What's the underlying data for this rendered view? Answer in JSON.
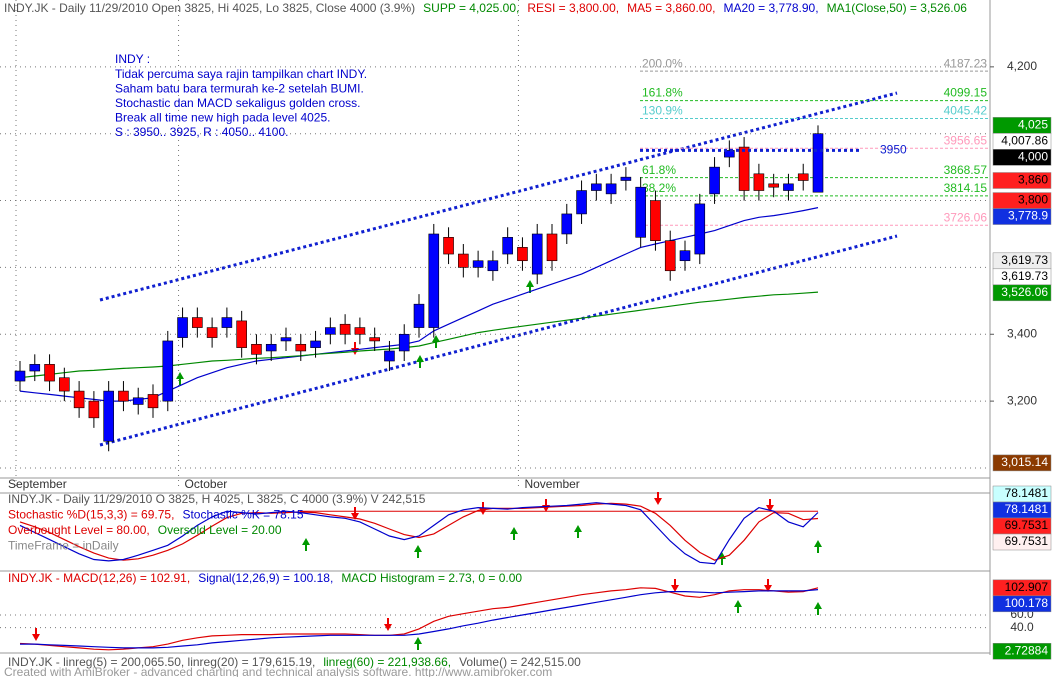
{
  "chart_data": [
    {
      "type": "candlestick",
      "header": [
        {
          "text": "INDY.JK - Daily 11/29/2010 Open 3825, Hi 4025, Lo 3825, Close 4000 (3.9%)",
          "color": "#555555"
        },
        {
          "text": "SUPP = 4,025.00,",
          "color": "#008800"
        },
        {
          "text": "RESI = 3,800.00,",
          "color": "#dd0000"
        },
        {
          "text": "MA5 = 3,860.00,",
          "color": "#dd0000"
        },
        {
          "text": "MA20 = 3,778.90,",
          "color": "#0000cc"
        },
        {
          "text": "MA1(Close,50) = 3,526.06",
          "color": "#008800"
        }
      ],
      "annotation": {
        "color": "#0000cc",
        "lines": [
          "INDY :",
          "Tidak percuma saya rajin tampilkan chart INDY.",
          "Saham batu bara termurah ke-2 setelah BUMI.",
          "Stochastic dan MACD sekaligus golden cross.",
          "Break all time new high pada level 4025.",
          "S : 3950.. 3925, R : 4050.. 4100."
        ]
      },
      "categories": [
        "September",
        null,
        null,
        null,
        null,
        null,
        null,
        null,
        null,
        null,
        null,
        "October",
        null,
        null,
        null,
        null,
        null,
        null,
        null,
        null,
        null,
        null,
        null,
        null,
        null,
        null,
        null,
        null,
        null,
        null,
        null,
        null,
        null,
        null,
        "November",
        null,
        null,
        null,
        null,
        null,
        null,
        null,
        null,
        null,
        null,
        null,
        null,
        null,
        null,
        null,
        null,
        null,
        null,
        null,
        null
      ],
      "open": [
        3260,
        3290,
        3310,
        3270,
        3230,
        3200,
        3080,
        3230,
        3190,
        3220,
        3200,
        3390,
        3450,
        3420,
        3420,
        3440,
        3370,
        3350,
        3380,
        3370,
        3360,
        3400,
        3430,
        3420,
        3390,
        3320,
        3350,
        3420,
        3420,
        3690,
        3640,
        3600,
        3590,
        3640,
        3660,
        3580,
        3700,
        3700,
        3760,
        3830,
        3820,
        3860,
        3690,
        3800,
        3680,
        3620,
        3640,
        3820,
        3930,
        3960,
        3880,
        3850,
        3830,
        3880,
        3825
      ],
      "high": [
        3320,
        3340,
        3340,
        3300,
        3260,
        3230,
        3260,
        3260,
        3240,
        3250,
        3410,
        3480,
        3480,
        3450,
        3480,
        3470,
        3400,
        3400,
        3420,
        3400,
        3410,
        3450,
        3460,
        3450,
        3420,
        3380,
        3430,
        3520,
        3730,
        3720,
        3670,
        3650,
        3650,
        3720,
        3690,
        3730,
        3730,
        3790,
        3860,
        3880,
        3880,
        3900,
        3870,
        3830,
        3710,
        3680,
        3820,
        3930,
        3980,
        3990,
        3910,
        3880,
        3880,
        3910,
        4025
      ],
      "low": [
        3230,
        3260,
        3230,
        3200,
        3150,
        3120,
        3050,
        3170,
        3160,
        3150,
        3170,
        3360,
        3390,
        3360,
        3390,
        3330,
        3310,
        3320,
        3350,
        3320,
        3330,
        3370,
        3370,
        3370,
        3350,
        3290,
        3320,
        3390,
        3390,
        3610,
        3570,
        3570,
        3560,
        3610,
        3590,
        3550,
        3590,
        3670,
        3730,
        3800,
        3790,
        3830,
        3660,
        3650,
        3560,
        3590,
        3610,
        3790,
        3900,
        3800,
        3800,
        3810,
        3800,
        3830,
        3825
      ],
      "close": [
        3290,
        3310,
        3260,
        3230,
        3180,
        3150,
        3230,
        3200,
        3210,
        3180,
        3380,
        3450,
        3420,
        3390,
        3450,
        3360,
        3340,
        3370,
        3390,
        3350,
        3380,
        3420,
        3400,
        3400,
        3380,
        3350,
        3400,
        3490,
        3700,
        3640,
        3600,
        3620,
        3620,
        3690,
        3620,
        3700,
        3620,
        3760,
        3830,
        3850,
        3850,
        3870,
        3840,
        3680,
        3590,
        3650,
        3790,
        3900,
        3950,
        3830,
        3830,
        3840,
        3850,
        3860,
        4000
      ],
      "up_color": "#0000ff",
      "down_color": "#ff0000",
      "series": [
        {
          "color": "#0000cc",
          "values": [
            3230,
            3225,
            3220,
            3215,
            3210,
            3205,
            3200,
            3200,
            3205,
            3210,
            3230,
            3250,
            3270,
            3285,
            3300,
            3310,
            3320,
            3325,
            3330,
            3335,
            3340,
            3345,
            3350,
            3355,
            3360,
            3365,
            3370,
            3380,
            3410,
            3430,
            3450,
            3470,
            3490,
            3505,
            3520,
            3535,
            3550,
            3565,
            3580,
            3600,
            3620,
            3640,
            3660,
            3670,
            3680,
            3690,
            3700,
            3710,
            3725,
            3740,
            3750,
            3755,
            3762,
            3770,
            3778.9
          ]
        },
        {
          "color": "#008800",
          "values": [
            3270,
            3275,
            3280,
            3285,
            3290,
            3292,
            3295,
            3298,
            3300,
            3302,
            3305,
            3310,
            3315,
            3320,
            3322,
            3325,
            3328,
            3330,
            3333,
            3336,
            3340,
            3343,
            3346,
            3350,
            3353,
            3356,
            3360,
            3365,
            3375,
            3385,
            3395,
            3405,
            3412,
            3418,
            3424,
            3430,
            3436,
            3442,
            3448,
            3454,
            3460,
            3466,
            3472,
            3478,
            3484,
            3490,
            3496,
            3500,
            3505,
            3510,
            3514,
            3518,
            3520,
            3523,
            3526.06
          ]
        }
      ],
      "ylim": [
        2970,
        4400
      ],
      "yticks": [
        {
          "value": 3200,
          "label": "3,200"
        },
        {
          "value": 3400,
          "label": "3,400"
        },
        {
          "value": 4200,
          "label": "4,200"
        }
      ],
      "ygrid": [
        3000,
        3200,
        3400,
        3600,
        3800,
        4000,
        4200
      ],
      "fib": [
        {
          "label": "200.0%",
          "price": "4187.23",
          "value": 4187.23,
          "color": "#999999"
        },
        {
          "label": "161.8%",
          "price": "4099.15",
          "value": 4099.15,
          "color": "#22bb22"
        },
        {
          "label": "130.9%",
          "price": "4045.42",
          "value": 4045.42,
          "color": "#55cccc"
        },
        {
          "price": "3956.65",
          "value": 3956.65,
          "color": "#ff99bb"
        },
        {
          "label": "61.8%",
          "price": "3868.57",
          "value": 3868.57,
          "color": "#22bb22"
        },
        {
          "label": "38.2%",
          "price": "3814.15",
          "value": 3814.15,
          "color": "#22bb22"
        },
        {
          "price": "3726.06",
          "value": 3726.06,
          "color": "#ff99bb"
        }
      ],
      "level_note": {
        "label": "3950",
        "value": 3950
      },
      "price_tags": [
        {
          "label": "4,025",
          "value": 4025,
          "bg": "#009900",
          "fg": "#ffffff"
        },
        {
          "label": "4,007.86",
          "value": 4007.86,
          "bg": "#ffffff",
          "fg": "#000000"
        },
        {
          "label": "4,000",
          "value": 4000,
          "bg": "#000000",
          "fg": "#ffffff"
        },
        {
          "label": "3,860",
          "value": 3860,
          "bg": "#ff2020",
          "fg": "#000000"
        },
        {
          "label": "3,800",
          "value": 3800,
          "bg": "#ff2020",
          "fg": "#000000"
        },
        {
          "label": "3,778.9",
          "value": 3778.9,
          "bg": "#1030e0",
          "fg": "#ffffff"
        },
        {
          "label": "3,619.73",
          "value": 3619.73,
          "bg": "#eeeeee",
          "fg": "#000000"
        },
        {
          "label": "3,619.73",
          "value": 3619.73,
          "bg": "#ffffff",
          "fg": "#000000"
        },
        {
          "label": "3,526.06",
          "value": 3526.06,
          "bg": "#009900",
          "fg": "#ffffff"
        },
        {
          "label": "3,015.14",
          "value": 3015.14,
          "bg": "#8b3a00",
          "fg": "#ffffff"
        }
      ]
    },
    {
      "type": "line",
      "header": [
        [
          {
            "text": "INDY.JK - Daily 11/29/2010 O 3825, H 4025, L 3825, C 4000 (3.9%) V 242,515",
            "color": "#555555"
          }
        ],
        [
          {
            "text": "Stochastic %D(15,3,3) = 69.75,",
            "color": "#dd0000"
          },
          {
            "text": "Stochastic %K = 78.15",
            "color": "#0000cc"
          }
        ],
        [
          {
            "text": "Overbought Level = 80.00,",
            "color": "#dd0000"
          },
          {
            "text": "Oversold Level = 20.00",
            "color": "#008800"
          }
        ],
        [
          {
            "text": "TimeFrame = inDaily",
            "color": "#888888"
          }
        ]
      ],
      "ylim": [
        0,
        100
      ],
      "overbought": 80,
      "series": [
        {
          "color": "#dd0000",
          "values": [
            65,
            58,
            50,
            40,
            30,
            21,
            14,
            11,
            13,
            18,
            25,
            34,
            46,
            59,
            71,
            77,
            78,
            77,
            78,
            79,
            78,
            75,
            72,
            69,
            63,
            55,
            47,
            43,
            48,
            60,
            72,
            81,
            84,
            84,
            84,
            85,
            86,
            87,
            88,
            90,
            91,
            90,
            87,
            77,
            60,
            39,
            22,
            11,
            18,
            39,
            65,
            78,
            77,
            68,
            69.75
          ]
        },
        {
          "color": "#0000cc",
          "values": [
            60,
            50,
            40,
            30,
            20,
            12,
            10,
            12,
            18,
            25,
            32,
            45,
            60,
            72,
            80,
            78,
            76,
            78,
            80,
            78,
            75,
            72,
            70,
            65,
            55,
            45,
            40,
            45,
            60,
            75,
            82,
            85,
            84,
            83,
            85,
            86,
            87,
            88,
            90,
            92,
            90,
            88,
            82,
            60,
            38,
            20,
            8,
            6,
            40,
            70,
            85,
            80,
            65,
            58,
            78.15
          ]
        }
      ],
      "price_tags": [
        {
          "label": "78.1481",
          "value": 78.1481,
          "bg": "#c8ffff",
          "fg": "#000000"
        },
        {
          "label": "78.1481",
          "value": 78.1481,
          "bg": "#1030e0",
          "fg": "#ffffff"
        },
        {
          "label": "69.7531",
          "value": 69.7531,
          "bg": "#ff2020",
          "fg": "#000000"
        },
        {
          "label": "69.7531",
          "value": 69.7531,
          "bg": "#fff0f0",
          "fg": "#000000"
        }
      ]
    },
    {
      "type": "line",
      "header": [
        [
          {
            "text": "INDY.JK - MACD(12,26) = 102.91,",
            "color": "#dd0000"
          },
          {
            "text": "Signal(12,26,9) = 100.18,",
            "color": "#0000cc"
          },
          {
            "text": "MACD Histogram = 2.73, 0 = 0.00",
            "color": "#008800"
          }
        ]
      ],
      "ylim": [
        0,
        120
      ],
      "yticks": [
        {
          "value": 60,
          "label": "60.0"
        },
        {
          "value": 40,
          "label": "40.0"
        }
      ],
      "series": [
        {
          "color": "#dd0000",
          "values": [
            15,
            14,
            12,
            10,
            8,
            6,
            5,
            6,
            8,
            10,
            14,
            20,
            24,
            27,
            28,
            29,
            29,
            29,
            30,
            30,
            30,
            30,
            30,
            29,
            28,
            28,
            30,
            38,
            50,
            58,
            62,
            66,
            70,
            72,
            76,
            80,
            84,
            88,
            92,
            95,
            98,
            100,
            103,
            102,
            96,
            90,
            88,
            92,
            98,
            100,
            100,
            98,
            96,
            97,
            102.91
          ]
        },
        {
          "color": "#0000cc",
          "values": [
            14,
            14,
            13,
            12,
            11,
            10,
            9,
            8,
            8,
            8,
            9,
            11,
            13,
            16,
            18,
            20,
            22,
            24,
            25,
            26,
            27,
            28,
            28,
            28,
            28,
            28,
            28,
            30,
            34,
            38,
            43,
            47,
            52,
            56,
            60,
            64,
            68,
            72,
            76,
            80,
            84,
            88,
            92,
            95,
            97,
            97,
            96,
            95,
            96,
            97,
            98,
            98,
            98,
            98,
            100.18
          ]
        }
      ],
      "price_tags": [
        {
          "label": "102.907",
          "value": 102.907,
          "bg": "#ff2020",
          "fg": "#000000"
        },
        {
          "label": "100.178",
          "value": 100.178,
          "bg": "#1030e0",
          "fg": "#ffffff"
        },
        {
          "label": "2.72884",
          "value": 2.72884,
          "bg": "#009900",
          "fg": "#ffffff"
        }
      ]
    },
    {
      "type": "text",
      "header": [
        {
          "text": "INDY.JK - linreg(5) = 200,065.50, linreg(20) = 179,615.19,",
          "color": "#555555"
        },
        {
          "text": "linreg(60) = 221,938.66,",
          "color": "#008800"
        },
        {
          "text": "Volume() = 242,515.00",
          "color": "#555555"
        }
      ],
      "footer": "Created with AmiBroker - advanced charting and technical analysis software. http://www.amibroker.com"
    }
  ]
}
